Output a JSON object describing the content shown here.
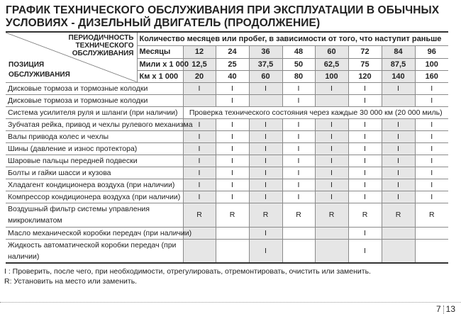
{
  "title": [
    "ГРАФИК ТЕХНИЧЕСКОГО ОБСЛУЖИВАНИЯ ПРИ ЭКСПЛУАТАЦИИ В ОБЫЧНЫХ",
    "УСЛОВИЯХ - ДИЗЕЛЬНЫЙ ДВИГАТЕЛЬ (ПРОДОЛЖЕНИЕ)"
  ],
  "header": {
    "corner_top": [
      "ПЕРИОДИЧНОСТЬ",
      "ТЕХНИЧЕСКОГО",
      "ОБСЛУЖИВАНИЯ"
    ],
    "corner_bottom": [
      "ПОЗИЦИЯ",
      "ОБСЛУЖИВАНИЯ"
    ],
    "interval_caption": "Количество месяцев или пробег, в зависимости от того, что наступит раньше",
    "rows": [
      {
        "unit": "Месяцы",
        "values": [
          "12",
          "24",
          "36",
          "48",
          "60",
          "72",
          "84",
          "96"
        ]
      },
      {
        "unit": "Мили x 1 000",
        "values": [
          "12,5",
          "25",
          "37,5",
          "50",
          "62,5",
          "75",
          "87,5",
          "100"
        ]
      },
      {
        "unit": "Км x 1 000",
        "values": [
          "20",
          "40",
          "60",
          "80",
          "100",
          "120",
          "140",
          "160"
        ]
      }
    ]
  },
  "rows": [
    {
      "item": "Дисковые тормоза и тормозные колодки",
      "values": [
        "I",
        "I",
        "I",
        "I",
        "I",
        "I",
        "I",
        "I"
      ]
    },
    {
      "item": "Дисковые тормоза и тормозные колодки",
      "values": [
        "",
        "I",
        "",
        "I",
        "",
        "I",
        "",
        "I"
      ]
    },
    {
      "item": "Система усилителя руля и шланги (при наличии)",
      "note": "Проверка технического состояния через каждые 30 000 км (20 000 миль)"
    },
    {
      "item": "Зубчатая рейка, привод и чехлы рулевого механизма",
      "values": [
        "I",
        "I",
        "I",
        "I",
        "I",
        "I",
        "I",
        "I"
      ]
    },
    {
      "item": "Валы привода колес и чехлы",
      "values": [
        "I",
        "I",
        "I",
        "I",
        "I",
        "I",
        "I",
        "I"
      ]
    },
    {
      "item": "Шины (давление и износ протектора)",
      "values": [
        "I",
        "I",
        "I",
        "I",
        "I",
        "I",
        "I",
        "I"
      ]
    },
    {
      "item": "Шаровые пальцы передней подвески",
      "values": [
        "I",
        "I",
        "I",
        "I",
        "I",
        "I",
        "I",
        "I"
      ]
    },
    {
      "item": "Болты и гайки шасси и кузова",
      "values": [
        "I",
        "I",
        "I",
        "I",
        "I",
        "I",
        "I",
        "I"
      ]
    },
    {
      "item": "Хладагент кондиционера воздуха (при наличии)",
      "values": [
        "I",
        "I",
        "I",
        "I",
        "I",
        "I",
        "I",
        "I"
      ]
    },
    {
      "item": "Компрессор кондиционера воздуха (при наличии)",
      "values": [
        "I",
        "I",
        "I",
        "I",
        "I",
        "I",
        "I",
        "I"
      ]
    },
    {
      "item": "Воздушный фильтр системы управления микроклиматом",
      "values": [
        "R",
        "R",
        "R",
        "R",
        "R",
        "R",
        "R",
        "R"
      ]
    },
    {
      "item": "Масло механической коробки передач (при наличии)",
      "values": [
        "",
        "",
        "I",
        "",
        "",
        "I",
        "",
        ""
      ]
    },
    {
      "item": "Жидкость автоматической коробки передач (при наличии)",
      "values": [
        "",
        "",
        "I",
        "",
        "",
        "I",
        "",
        ""
      ]
    }
  ],
  "notes": [
    "I : Проверить, после чего, при необходимости, отрегулировать, отремонтировать, очистить или заменить.",
    "R: Установить на место или заменить."
  ],
  "page": {
    "chapter": "7",
    "number": "13"
  },
  "colors": {
    "shade": "#e6e6e6",
    "rule": "#333333"
  }
}
